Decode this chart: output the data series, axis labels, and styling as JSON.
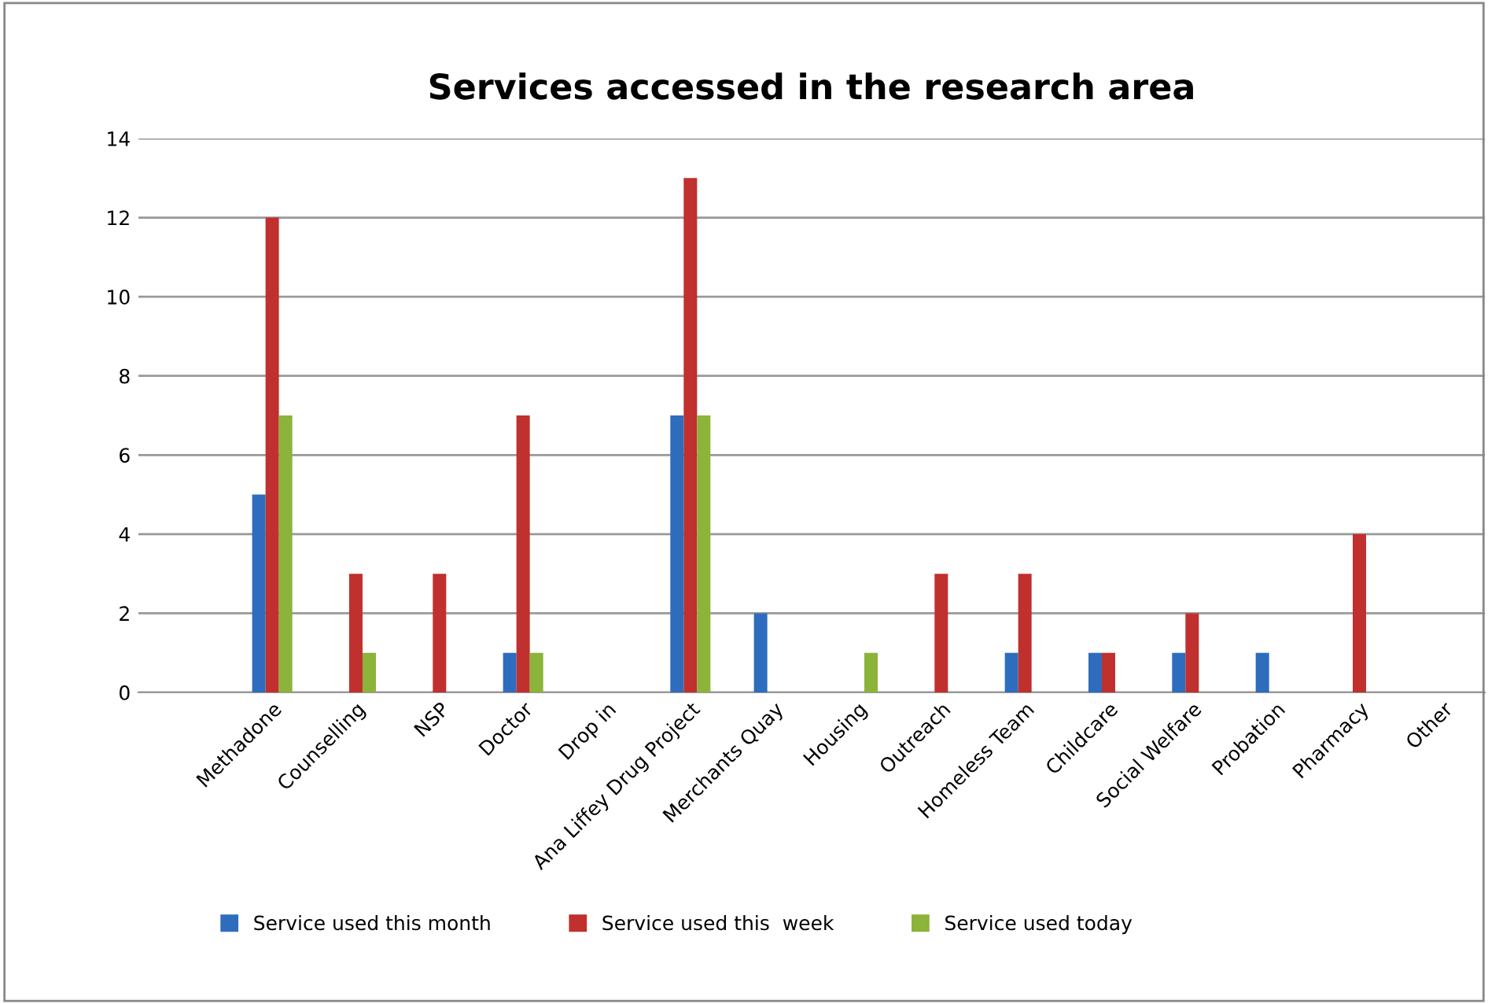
{
  "chart_data": {
    "type": "bar",
    "title": "Services accessed in the research area",
    "categories": [
      "Methadone",
      "Counselling",
      "NSP",
      "Doctor",
      "Drop in",
      "Ana Liffey Drug Project",
      "Merchants Quay",
      "Housing",
      "Outreach",
      "Homeless Team",
      "Childcare",
      "Social Welfare",
      "Probation",
      "Pharmacy",
      "Other"
    ],
    "series": [
      {
        "name": "Service used this month",
        "color": "#2e6dbd",
        "values": [
          5,
          null,
          null,
          1,
          null,
          7,
          2,
          null,
          null,
          1,
          1,
          1,
          1,
          null,
          null
        ]
      },
      {
        "name": "Service used this  week",
        "color": "#c0302e",
        "values": [
          12,
          3,
          3,
          7,
          null,
          13,
          null,
          null,
          3,
          3,
          1,
          2,
          null,
          4,
          null
        ]
      },
      {
        "name": "Service used today",
        "color": "#8cb33a",
        "values": [
          7,
          1,
          null,
          1,
          null,
          7,
          null,
          1,
          null,
          null,
          null,
          null,
          null,
          null,
          null
        ]
      }
    ],
    "ylim": [
      0,
      14
    ],
    "yticks": [
      0,
      2,
      4,
      6,
      8,
      10,
      12,
      14
    ],
    "grid": "y",
    "legend": "bottom"
  }
}
